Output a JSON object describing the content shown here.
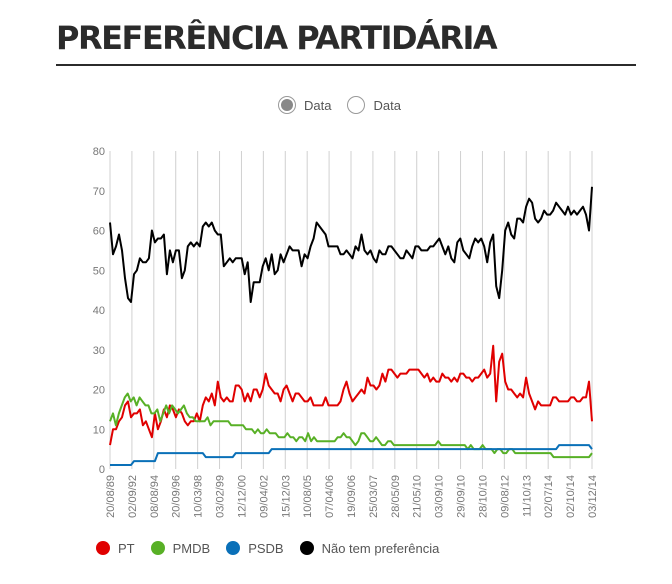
{
  "header": {
    "title": "PREFERÊNCIA PARTIDÁRIA"
  },
  "toggles": [
    {
      "label": "Data",
      "selected": true
    },
    {
      "label": "Data",
      "selected": false
    }
  ],
  "legend": [
    {
      "label": "PT",
      "color": "#e00000"
    },
    {
      "label": "PMDB",
      "color": "#58b026"
    },
    {
      "label": "PSDB",
      "color": "#0a70b8"
    },
    {
      "label": "Não tem preferência",
      "color": "#000000"
    }
  ],
  "chart_data": {
    "type": "line",
    "ylim": [
      0,
      80
    ],
    "y_ticks": [
      "0",
      "10",
      "20",
      "30",
      "40",
      "50",
      "60",
      "70",
      "80"
    ],
    "x_tick_labels": [
      "20/08/89",
      "02/09/92",
      "08/08/94",
      "20/09/96",
      "10/03/98",
      "03/02/99",
      "12/12/00",
      "09/04/02",
      "15/12/03",
      "10/08/05",
      "07/04/06",
      "19/09/06",
      "25/03/07",
      "28/05/09",
      "21/05/10",
      "03/09/10",
      "29/09/10",
      "28/10/10",
      "09/08/12",
      "11/10/13",
      "02/07/14",
      "02/10/14",
      "03/12/14"
    ],
    "series": [
      {
        "name": "PT",
        "color": "#e00000",
        "values": [
          6,
          10,
          10,
          12,
          13,
          16,
          17,
          13,
          14,
          14,
          15,
          11,
          12,
          10,
          8,
          14,
          10,
          12,
          15,
          13,
          16,
          15,
          13,
          15,
          14,
          12,
          11,
          12,
          12,
          14,
          12,
          16,
          18,
          17,
          19,
          16,
          22,
          18,
          17,
          18,
          17,
          17,
          21,
          21,
          20,
          17,
          19,
          17,
          20,
          20,
          18,
          20,
          24,
          21,
          20,
          19,
          19,
          17,
          20,
          21,
          19,
          17,
          19,
          19,
          18,
          17,
          17,
          18,
          16,
          16,
          16,
          16,
          18,
          16,
          16,
          16,
          16,
          17,
          20,
          22,
          19,
          17,
          18,
          19,
          20,
          19,
          23,
          21,
          21,
          20,
          21,
          24,
          22,
          25,
          25,
          24,
          23,
          24,
          24,
          24,
          25,
          25,
          25,
          25,
          24,
          23,
          24,
          22,
          23,
          22,
          22,
          24,
          23,
          23,
          22,
          23,
          22,
          24,
          24,
          23,
          23,
          22,
          23,
          23,
          24,
          25,
          23,
          24,
          31,
          17,
          27,
          29,
          22,
          20,
          20,
          19,
          18,
          19,
          18,
          23,
          19,
          17,
          15,
          17,
          16,
          16,
          16,
          16,
          18,
          18,
          17,
          17,
          17,
          17,
          18,
          18,
          17,
          17,
          18,
          18,
          22,
          12
        ]
      },
      {
        "name": "PMDB",
        "color": "#58b026",
        "values": [
          12,
          14,
          11,
          14,
          16,
          18,
          19,
          17,
          18,
          16,
          18,
          17,
          16,
          16,
          14,
          14,
          15,
          12,
          14,
          16,
          14,
          16,
          15,
          14,
          15,
          16,
          14,
          13,
          13,
          12,
          12,
          12,
          12,
          13,
          11,
          12,
          12,
          12,
          12,
          12,
          12,
          11,
          11,
          11,
          11,
          11,
          10,
          10,
          10,
          9,
          10,
          9,
          9,
          10,
          9,
          9,
          9,
          8,
          8,
          8,
          9,
          8,
          8,
          7,
          8,
          8,
          7,
          9,
          7,
          8,
          7,
          7,
          7,
          7,
          7,
          7,
          7,
          8,
          8,
          9,
          8,
          8,
          7,
          6,
          7,
          9,
          9,
          8,
          7,
          7,
          8,
          7,
          6,
          6,
          7,
          7,
          6,
          6,
          6,
          6,
          6,
          6,
          6,
          6,
          6,
          6,
          6,
          6,
          6,
          6,
          6,
          7,
          6,
          6,
          6,
          6,
          6,
          6,
          6,
          6,
          6,
          5,
          6,
          5,
          5,
          5,
          6,
          5,
          5,
          5,
          4,
          5,
          5,
          4,
          4,
          5,
          5,
          4,
          4,
          4,
          4,
          4,
          4,
          4,
          4,
          4,
          4,
          4,
          4,
          4,
          3,
          3,
          3,
          3,
          3,
          3,
          3,
          3,
          3,
          3,
          3,
          3,
          3,
          4
        ]
      },
      {
        "name": "PSDB",
        "color": "#0a70b8",
        "values": [
          1,
          1,
          1,
          1,
          1,
          1,
          1,
          1,
          2,
          2,
          2,
          2,
          2,
          2,
          2,
          2,
          4,
          4,
          4,
          4,
          4,
          4,
          4,
          4,
          4,
          4,
          4,
          4,
          4,
          4,
          4,
          4,
          3,
          3,
          3,
          3,
          3,
          3,
          3,
          3,
          3,
          3,
          4,
          4,
          4,
          4,
          4,
          4,
          4,
          4,
          4,
          4,
          4,
          4,
          5,
          5,
          5,
          5,
          5,
          5,
          5,
          5,
          5,
          5,
          5,
          5,
          5,
          5,
          5,
          5,
          5,
          5,
          5,
          5,
          5,
          5,
          5,
          5,
          5,
          5,
          5,
          5,
          5,
          5,
          5,
          5,
          5,
          5,
          5,
          5,
          5,
          5,
          5,
          5,
          5,
          5,
          5,
          5,
          5,
          5,
          5,
          5,
          5,
          5,
          5,
          5,
          5,
          5,
          5,
          5,
          5,
          5,
          5,
          5,
          5,
          5,
          5,
          5,
          5,
          5,
          5,
          5,
          5,
          5,
          5,
          5,
          5,
          5,
          5,
          5,
          5,
          5,
          5,
          5,
          5,
          5,
          5,
          5,
          5,
          5,
          5,
          5,
          5,
          5,
          5,
          5,
          5,
          5,
          5,
          5,
          6,
          6,
          6,
          6,
          6,
          6,
          6,
          6,
          6,
          6,
          6,
          5
        ]
      },
      {
        "name": "Não tem preferência",
        "color": "#000000",
        "values": [
          62,
          54,
          56,
          59,
          55,
          48,
          43,
          42,
          49,
          50,
          53,
          52,
          52,
          53,
          60,
          57,
          58,
          58,
          59,
          49,
          55,
          52,
          55,
          55,
          48,
          50,
          56,
          57,
          56,
          57,
          56,
          61,
          62,
          61,
          62,
          60,
          59,
          59,
          51,
          52,
          53,
          52,
          53,
          53,
          53,
          49,
          52,
          42,
          47,
          47,
          47,
          51,
          53,
          50,
          54,
          49,
          50,
          54,
          52,
          54,
          56,
          55,
          55,
          55,
          51,
          54,
          53,
          56,
          58,
          62,
          61,
          60,
          59,
          56,
          56,
          56,
          56,
          54,
          54,
          55,
          54,
          53,
          56,
          55,
          59,
          55,
          54,
          55,
          53,
          52,
          55,
          54,
          54,
          56,
          56,
          55,
          54,
          53,
          53,
          55,
          54,
          53,
          56,
          56,
          55,
          55,
          55,
          56,
          56,
          57,
          58,
          56,
          54,
          56,
          53,
          52,
          57,
          58,
          55,
          54,
          53,
          56,
          58,
          57,
          58,
          56,
          52,
          57,
          59,
          46,
          43,
          50,
          60,
          62,
          59,
          58,
          63,
          63,
          62,
          66,
          68,
          67,
          63,
          62,
          63,
          65,
          64,
          64,
          65,
          67,
          66,
          65,
          64,
          66,
          64,
          65,
          64,
          65,
          66,
          64,
          60,
          71
        ]
      }
    ]
  }
}
